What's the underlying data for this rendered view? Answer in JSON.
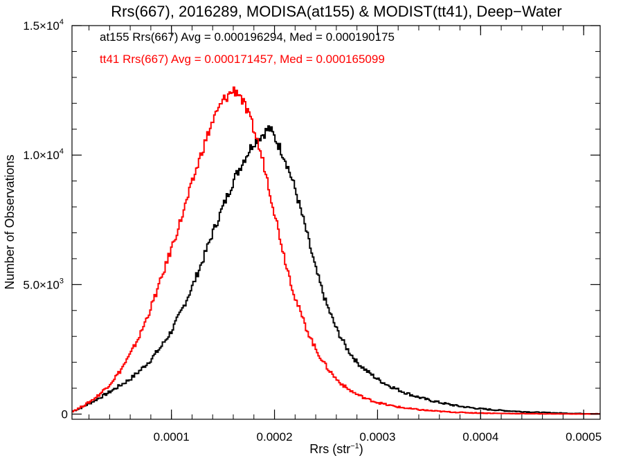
{
  "chart_data": {
    "type": "line",
    "step": true,
    "title": "Rrs(667), 2016289, MODISA(at155) & MODIST(tt41), Deep−Water",
    "xlabel": "Rrs (str",
    "xlabel_sup": "−1",
    "xlabel_close": ")",
    "ylabel": "Number of Observations",
    "xlim": [
      3.5e-06,
      0.000516
    ],
    "ylim": [
      -200,
      15000
    ],
    "x_ticks": [
      {
        "value": 0.0001,
        "label": "0.0001"
      },
      {
        "value": 0.0002,
        "label": "0.0002"
      },
      {
        "value": 0.0003,
        "label": "0.0003"
      },
      {
        "value": 0.0004,
        "label": "0.0004"
      },
      {
        "value": 0.0005,
        "label": "0.0005"
      }
    ],
    "y_ticks": [
      {
        "value": 0,
        "label": "0",
        "sup": ""
      },
      {
        "value": 5000,
        "label": "5.0×10",
        "sup": "3"
      },
      {
        "value": 10000,
        "label": "1.0×10",
        "sup": "4"
      },
      {
        "value": 15000,
        "label": "1.5×10",
        "sup": "4"
      }
    ],
    "annotations": [
      {
        "text": "at155 Rrs(667) Avg = 0.000196294, Med = 0.000190175",
        "color": "#000000"
      },
      {
        "text": "tt41 Rrs(667) Avg = 0.000171457, Med = 0.000165099",
        "color": "#ff0000"
      }
    ],
    "series": [
      {
        "color": "#000000",
        "x": [
          3.5e-06,
          1e-05,
          2e-05,
          3e-05,
          4e-05,
          5e-05,
          6e-05,
          7e-05,
          8e-05,
          9e-05,
          0.0001,
          0.00011,
          0.00012,
          0.00013,
          0.00014,
          0.00015,
          0.00016,
          0.00017,
          0.00018,
          0.00019,
          0.000195,
          0.0002,
          0.00021,
          0.00022,
          0.00023,
          0.00024,
          0.00025,
          0.00026,
          0.00027,
          0.00028,
          0.00029,
          0.0003,
          0.00031,
          0.00032,
          0.00033,
          0.00034,
          0.00035,
          0.00036,
          0.00037,
          0.00038,
          0.00039,
          0.0004,
          0.00042,
          0.00044,
          0.00046,
          0.00048,
          0.0005,
          0.000516
        ],
        "y": [
          100,
          200,
          400,
          620,
          850,
          1100,
          1350,
          1700,
          2100,
          2600,
          3200,
          4000,
          4900,
          5900,
          7000,
          8000,
          9000,
          9800,
          10500,
          10850,
          11050,
          10700,
          9900,
          8700,
          7200,
          5600,
          4300,
          3300,
          2550,
          2000,
          1650,
          1350,
          1120,
          940,
          780,
          650,
          540,
          450,
          370,
          300,
          250,
          205,
          140,
          95,
          60,
          35,
          20,
          10
        ]
      },
      {
        "color": "#ff0000",
        "x": [
          3.5e-06,
          1e-05,
          2e-05,
          3e-05,
          4e-05,
          5e-05,
          6e-05,
          7e-05,
          8e-05,
          9e-05,
          0.0001,
          0.00011,
          0.00012,
          0.00013,
          0.00014,
          0.00015,
          0.00016,
          0.000165,
          0.00017,
          0.00018,
          0.00019,
          0.0002,
          0.00021,
          0.00022,
          0.00023,
          0.00024,
          0.00025,
          0.00026,
          0.00027,
          0.00028,
          0.00029,
          0.0003,
          0.00031,
          0.00032,
          0.00033,
          0.00034,
          0.00035,
          0.00036,
          0.00037,
          0.00038,
          0.00039,
          0.0004,
          0.00042,
          0.00044,
          0.00046,
          0.00048,
          0.0005,
          0.000516
        ],
        "y": [
          100,
          220,
          450,
          750,
          1150,
          1650,
          2300,
          3100,
          4100,
          5200,
          6400,
          7600,
          8900,
          10200,
          11300,
          12100,
          12500,
          12450,
          12000,
          11000,
          9600,
          7800,
          6000,
          4500,
          3400,
          2500,
          1850,
          1350,
          1000,
          760,
          580,
          450,
          350,
          275,
          215,
          170,
          135,
          105,
          82,
          64,
          50,
          40,
          25,
          16,
          10,
          6,
          4,
          2
        ]
      }
    ]
  }
}
